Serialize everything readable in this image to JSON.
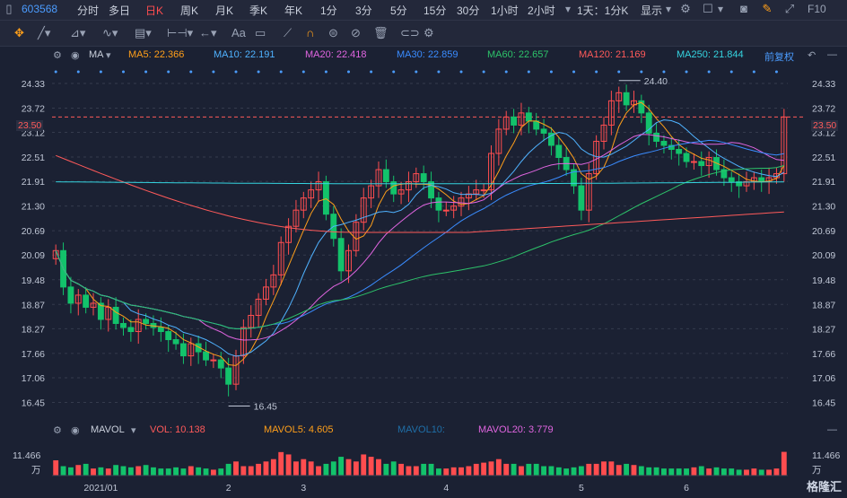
{
  "topbar": {
    "code": "603568",
    "periods": [
      "分时",
      "多日",
      "日K",
      "周K",
      "月K",
      "季K",
      "年K",
      "1分",
      "3分",
      "5分",
      "15分",
      "30分",
      "1小时",
      "2小时",
      "1天：1分K",
      "显示"
    ],
    "active_period": "日K",
    "right_label": "F10"
  },
  "toolbar": {
    "text_tool": "Aa"
  },
  "ma_legend": {
    "name": "MA",
    "items": [
      {
        "label": "MA5: 22.366",
        "color": "#ff9f1a"
      },
      {
        "label": "MA10: 22.191",
        "color": "#4fb2ff"
      },
      {
        "label": "MA20: 22.418",
        "color": "#e065e0"
      },
      {
        "label": "MA30: 22.859",
        "color": "#3a8cff"
      },
      {
        "label": "MA60: 22.657",
        "color": "#2dc36a"
      },
      {
        "label": "MA120: 21.169",
        "color": "#ff5a5a"
      },
      {
        "label": "MA250: 21.844",
        "color": "#35d4e0"
      }
    ],
    "adjust": "前复权"
  },
  "vol_legend": {
    "name": "MAVOL",
    "items": [
      {
        "label": "VOL: 10.138",
        "color": "#ff5a5a"
      },
      {
        "label": "MAVOL5: 4.605",
        "color": "#ff9f1a"
      },
      {
        "label": "MAVOL10:",
        "color": "#1f6fa8"
      },
      {
        "label": "MAVOL20: 3.779",
        "color": "#e065e0"
      }
    ]
  },
  "volume_axis": {
    "top_label": "11.466",
    "unit": "万"
  },
  "watermark": "格隆汇",
  "colors": {
    "up": "#ff4d4f",
    "down": "#13c26b",
    "bg": "#1b2133",
    "grid": "#3a4050"
  },
  "chart_data": {
    "type": "candlestick",
    "ylim": [
      16.15,
      24.75
    ],
    "yticks": [
      "24.33",
      "23.72",
      "23.12",
      "22.51",
      "21.91",
      "21.30",
      "20.69",
      "20.09",
      "19.48",
      "18.87",
      "18.27",
      "17.66",
      "17.06",
      "16.45"
    ],
    "xticks": [
      {
        "label": "2021/01",
        "i": 6
      },
      {
        "label": "2",
        "i": 23
      },
      {
        "label": "3",
        "i": 33
      },
      {
        "label": "4",
        "i": 52
      },
      {
        "label": "5",
        "i": 70
      },
      {
        "label": "6",
        "i": 84
      }
    ],
    "current_price": "23.50",
    "high_label": "24.40",
    "low_label": "16.45",
    "closes": [
      20.2,
      19.3,
      18.9,
      19.1,
      18.8,
      18.9,
      18.5,
      18.8,
      18.4,
      18.3,
      18.2,
      18.5,
      18.4,
      18.3,
      18.2,
      18.0,
      17.9,
      17.6,
      17.9,
      17.7,
      17.5,
      17.5,
      17.3,
      16.9,
      17.6,
      18.3,
      18.6,
      19.0,
      19.3,
      19.6,
      20.4,
      20.8,
      21.2,
      21.5,
      21.7,
      21.9,
      21.1,
      20.5,
      19.7,
      20.2,
      20.9,
      21.5,
      21.8,
      22.2,
      21.9,
      21.6,
      21.7,
      21.9,
      22.1,
      21.9,
      21.5,
      21.2,
      21.2,
      21.3,
      21.5,
      21.6,
      21.7,
      21.7,
      22.6,
      23.2,
      23.5,
      23.3,
      23.6,
      23.4,
      23.2,
      23.1,
      22.8,
      22.5,
      22.2,
      21.8,
      21.2,
      22.1,
      22.9,
      23.3,
      23.9,
      24.1,
      23.8,
      23.9,
      23.6,
      23.1,
      22.9,
      22.8,
      22.7,
      22.6,
      22.4,
      22.4,
      22.3,
      22.5,
      22.2,
      22.0,
      21.9,
      21.8,
      21.9,
      22.0,
      21.9,
      22.0,
      22.1,
      23.5
    ],
    "volumes": [
      6.5,
      4,
      3.5,
      4.5,
      5,
      3,
      3.5,
      3,
      4.5,
      4,
      3.5,
      4,
      4.5,
      3.5,
      3,
      3,
      3.5,
      3,
      4,
      3.5,
      3,
      2.5,
      3,
      5,
      6,
      4,
      4,
      5,
      6,
      7,
      10,
      9,
      6,
      7,
      6,
      4,
      5,
      6,
      8,
      7,
      6,
      9,
      8,
      7,
      5,
      6,
      5,
      4,
      4,
      5,
      5,
      3,
      3,
      3.5,
      3.5,
      4,
      5,
      5.5,
      6,
      7,
      5,
      5,
      4,
      5,
      5,
      4,
      4,
      3.5,
      3,
      3.5,
      4,
      5,
      5,
      6,
      6,
      4.5,
      5,
      4.5,
      4,
      3.5,
      3.5,
      3,
      3,
      3,
      3,
      3.5,
      4,
      3,
      3.5,
      3,
      3,
      2.5,
      2.5,
      3,
      2.5,
      2.5,
      3,
      10.1
    ]
  }
}
